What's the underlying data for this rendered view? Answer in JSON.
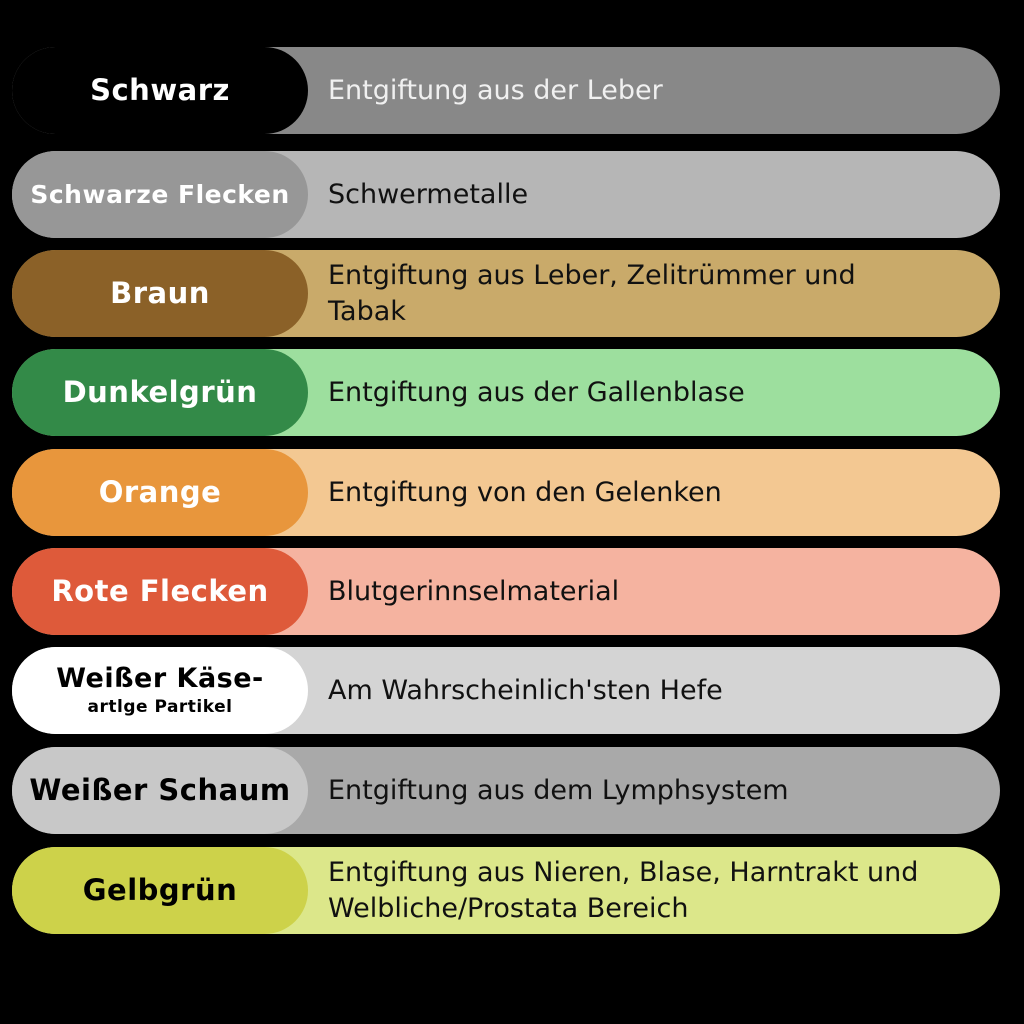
{
  "rows": [
    {
      "label": "Schwarz",
      "sub": "",
      "desc": "Entgiftung aus der Leber",
      "label_bg": "#000000",
      "desc_bg": "#888888",
      "label_color": "#ffffff",
      "desc_color": "#f0f0f0"
    },
    {
      "label": "Schwarze Flecken",
      "sub": "",
      "desc": "Schwermetalle",
      "label_bg": "#979797",
      "desc_bg": "#b6b6b6",
      "label_color": "#ffffff",
      "desc_color": "#111111"
    },
    {
      "label": "Braun",
      "sub": "",
      "desc": "Entgiftung aus Leber, Zelitrümmer und Tabak",
      "label_bg": "#8b6128",
      "desc_bg": "#c9aa6a",
      "label_color": "#ffffff",
      "desc_color": "#111111"
    },
    {
      "label": "Dunkelgrün",
      "sub": "",
      "desc": "Entgiftung aus der Gallenblase",
      "label_bg": "#338a48",
      "desc_bg": "#9ddf9e",
      "label_color": "#ffffff",
      "desc_color": "#111111"
    },
    {
      "label": "Orange",
      "sub": "",
      "desc": "Entgiftung von den Gelenken",
      "label_bg": "#e8963c",
      "desc_bg": "#f3c892",
      "label_color": "#ffffff",
      "desc_color": "#111111"
    },
    {
      "label": "Rote Flecken",
      "sub": "",
      "desc": "Blutgerinnselmaterial",
      "label_bg": "#de5a3a",
      "desc_bg": "#f5b3a0",
      "label_color": "#ffffff",
      "desc_color": "#111111"
    },
    {
      "label": "Weißer Käse-",
      "sub": "artlge Partikel",
      "desc": "Am Wahrscheinlich'sten Hefe",
      "label_bg": "#ffffff",
      "desc_bg": "#d4d4d4",
      "label_color": "#000000",
      "desc_color": "#111111"
    },
    {
      "label": "Weißer Schaum",
      "sub": "",
      "desc": "Entgiftung aus dem Lymphsystem",
      "label_bg": "#c8c8c8",
      "desc_bg": "#a9a9a9",
      "label_color": "#000000",
      "desc_color": "#111111"
    },
    {
      "label": "Gelbgrün",
      "sub": "",
      "desc": "Entgiftung aus Nieren, Blase, Harntrakt und Welbliche/Prostata Bereich",
      "label_bg": "#cdd24a",
      "desc_bg": "#dce78a",
      "label_color": "#000000",
      "desc_color": "#111111"
    }
  ]
}
